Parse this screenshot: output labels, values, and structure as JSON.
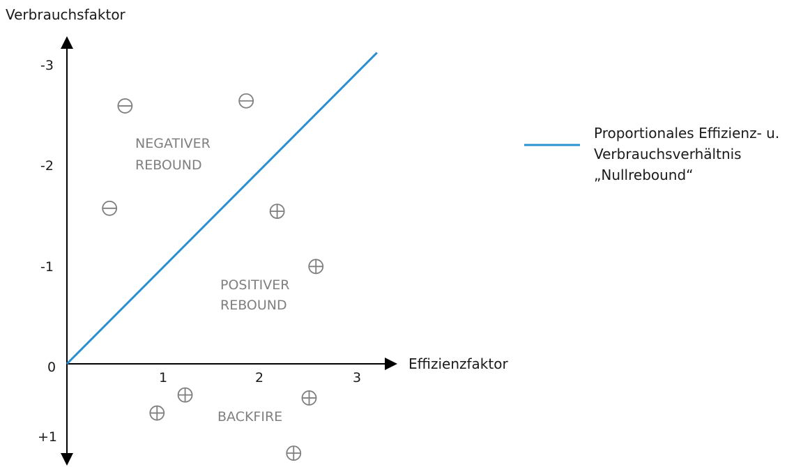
{
  "chart_data": {
    "type": "scatter",
    "xlabel": "Effizienzfaktor",
    "ylabel": "Verbrauchsfaktor",
    "xlim": [
      0,
      3.3
    ],
    "ylim": [
      1.1,
      -3.2
    ],
    "x_ticks": [
      {
        "value": 1,
        "label": "1"
      },
      {
        "value": 2,
        "label": "2"
      },
      {
        "value": 3,
        "label": "3"
      }
    ],
    "y_ticks": [
      {
        "value": -3,
        "label": "-3"
      },
      {
        "value": -2,
        "label": "-2"
      },
      {
        "value": -1,
        "label": "-1"
      },
      {
        "value": 0,
        "label": "0"
      },
      {
        "value": 1,
        "label": "+1"
      }
    ],
    "line": {
      "name": "Proportionales Effizienz- u. Verbrauchsverhältnis „Nullrebound“",
      "color": "#2a8fd1",
      "points": [
        [
          0,
          0
        ],
        [
          3.2,
          -3.1
        ]
      ]
    },
    "markers": [
      {
        "symbol": "⊖",
        "x": 0.6,
        "y": -2.57
      },
      {
        "symbol": "⊖",
        "x": 1.85,
        "y": -2.62
      },
      {
        "symbol": "⊖",
        "x": 0.44,
        "y": -1.55
      },
      {
        "symbol": "⊕",
        "x": 2.17,
        "y": -1.52
      },
      {
        "symbol": "⊕",
        "x": 2.57,
        "y": -0.97
      },
      {
        "symbol": "⊕",
        "x": 1.22,
        "y": 0.31
      },
      {
        "symbol": "⊕",
        "x": 0.93,
        "y": 0.49
      },
      {
        "symbol": "⊕",
        "x": 2.5,
        "y": 0.34
      },
      {
        "symbol": "⊕",
        "x": 2.34,
        "y": 0.89
      }
    ],
    "regions": [
      {
        "lines": [
          "NEGATIVER",
          "REBOUND"
        ],
        "x": 0.7,
        "y": -2.05
      },
      {
        "lines": [
          "POSITIVER",
          "REBOUND"
        ],
        "x": 1.57,
        "y": -0.6
      },
      {
        "lines": [
          "BACKFIRE"
        ],
        "x": 1.56,
        "y": 0.55
      }
    ],
    "legend": {
      "position": "right",
      "lines": [
        "Proportionales Effizienz- u.",
        "Verbrauchsverhältnis",
        "„Nullrebound“"
      ]
    },
    "colors": {
      "axis": "#000000",
      "line": "#2a8fd1",
      "marker": "#7f7f7f",
      "region_text": "#7f7f7f"
    }
  }
}
